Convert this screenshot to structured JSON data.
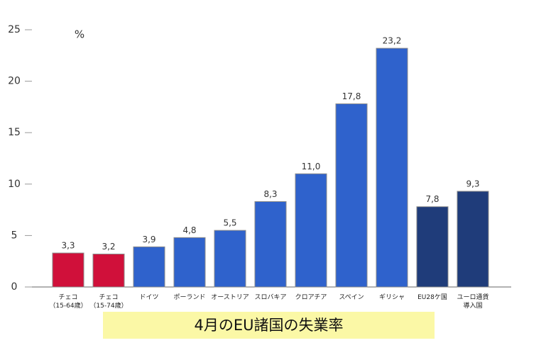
{
  "chart_data": {
    "type": "bar",
    "title": "4月のEU諸国の失業率",
    "unit": "%",
    "categories": [
      "チェコ\n（15-64歳）",
      "チェコ\n（15-74歳）",
      "ドイツ",
      "ポーランド",
      "オーストリア",
      "スロバキア",
      "クロアチア",
      "スペイン",
      "ギリシャ",
      "EU28ケ国",
      "ユーロ通貨\n導入国"
    ],
    "values": [
      3.3,
      3.2,
      3.9,
      4.8,
      5.5,
      8.3,
      11.0,
      17.8,
      23.2,
      7.8,
      9.3
    ],
    "value_labels": [
      "3,3",
      "3,2",
      "3,9",
      "4,8",
      "5,5",
      "8,3",
      "11,0",
      "17,8",
      "23,2",
      "7,8",
      "9,3"
    ],
    "colors": [
      "#d0103a",
      "#d0103a",
      "#2f62cc",
      "#2f62cc",
      "#2f62cc",
      "#2f62cc",
      "#2f62cc",
      "#2f62cc",
      "#2f62cc",
      "#1f3c7a",
      "#1f3c7a"
    ],
    "ylim": [
      0,
      25
    ],
    "yticks": [
      0,
      5,
      10,
      15,
      20,
      25
    ]
  }
}
